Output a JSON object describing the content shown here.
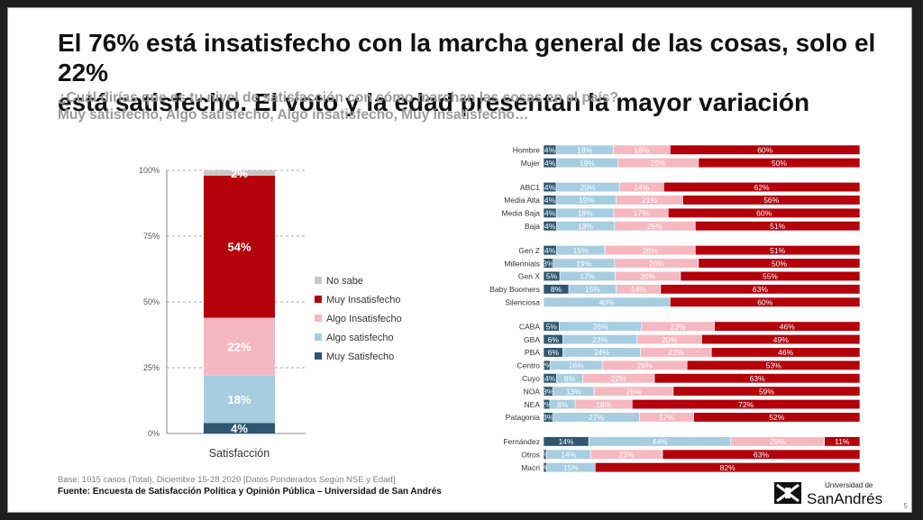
{
  "slide": {
    "title_lines": [
      "El 76% está insatisfecho con la marcha general de las cosas, solo el 22%",
      "está satisfecho. El voto y la edad presentan la mayor variación"
    ],
    "subtitle_lines": [
      "¿Cuál dirías que es tu nivel de satisfacción con cómo marchan las cosas en el país?",
      "Muy satisfecho, Algo satisfecho, Algo insatisfecho, Muy insatisfecho…"
    ],
    "footer_base": "Base: 1015 casos (Total), Diciembre 15-28 2020 [Datos Ponderados Según NSE y Edad]",
    "footer_source": "Fuente: Encuesta de Satisfacción Política y Opinión Pública – Universidad de San Andrés",
    "logo_top": "Universidad de",
    "logo_bottom": "SanAndrés",
    "page_number": "5"
  },
  "chart_data": [
    {
      "type": "bar",
      "stacked": true,
      "orientation": "vertical",
      "categories": [
        "Satisfacción"
      ],
      "y_ticks": [
        "0%",
        "25%",
        "50%",
        "75%",
        "100%"
      ],
      "ylim": [
        0,
        100
      ],
      "legend_position": "right",
      "series": [
        {
          "name": "Muy Satisfecho",
          "values": [
            4
          ],
          "labels": [
            "4%"
          ]
        },
        {
          "name": "Algo satisfecho",
          "values": [
            18
          ],
          "labels": [
            "18%"
          ]
        },
        {
          "name": "Algo Insatisfecho",
          "values": [
            22
          ],
          "labels": [
            "22%"
          ]
        },
        {
          "name": "Muy Insatisfecho",
          "values": [
            54
          ],
          "labels": [
            "54%"
          ]
        },
        {
          "name": "No sabe",
          "values": [
            2
          ],
          "labels": [
            "2%"
          ]
        }
      ],
      "colors": {
        "Muy Satisfecho": "#2e5670",
        "Algo satisfecho": "#a7cde0",
        "Algo Insatisfecho": "#f6b8c0",
        "Muy Insatisfecho": "#b3000b",
        "No sabe": "#c8c8c8"
      }
    },
    {
      "type": "bar",
      "stacked": true,
      "orientation": "horizontal",
      "series_order": [
        "Muy Satisfecho",
        "Algo satisfecho",
        "Algo Insatisfecho",
        "Muy Insatisfecho"
      ],
      "colors": [
        "#2e5670",
        "#a7cde0",
        "#f6b8c0",
        "#b3000b"
      ],
      "groups": [
        {
          "rows": [
            {
              "label": "Hombre",
              "values": [
                4,
                18,
                18,
                60
              ]
            },
            {
              "label": "Mujer",
              "values": [
                4,
                19,
                25,
                50
              ]
            }
          ]
        },
        {
          "rows": [
            {
              "label": "ABC1",
              "values": [
                4,
                20,
                14,
                62
              ]
            },
            {
              "label": "Media Alta",
              "values": [
                4,
                19,
                21,
                56
              ]
            },
            {
              "label": "Media Baja",
              "values": [
                4,
                18,
                17,
                60
              ]
            },
            {
              "label": "Baja",
              "values": [
                4,
                18,
                25,
                51
              ]
            }
          ]
        },
        {
          "rows": [
            {
              "label": "Gen Z",
              "values": [
                4,
                15,
                28,
                51
              ]
            },
            {
              "label": "Millennials",
              "values": [
                3,
                19,
                26,
                50
              ]
            },
            {
              "label": "Gen X",
              "values": [
                5,
                17,
                20,
                55
              ]
            },
            {
              "label": "Baby Boomers",
              "values": [
                8,
                15,
                14,
                63
              ]
            },
            {
              "label": "Silenciosa",
              "values": [
                0,
                40,
                0,
                60
              ]
            }
          ]
        },
        {
          "rows": [
            {
              "label": "CABA",
              "values": [
                5,
                26,
                23,
                46
              ]
            },
            {
              "label": "GBA",
              "values": [
                6,
                23,
                20,
                49
              ]
            },
            {
              "label": "PBA",
              "values": [
                6,
                24,
                22,
                46
              ]
            },
            {
              "label": "Centro",
              "values": [
                2,
                16,
                26,
                53
              ]
            },
            {
              "label": "Cuyo",
              "values": [
                4,
                8,
                22,
                63
              ]
            },
            {
              "label": "NOA",
              "values": [
                3,
                13,
                25,
                59
              ]
            },
            {
              "label": "NEA",
              "values": [
                2,
                8,
                18,
                72
              ]
            },
            {
              "label": "Patagonia",
              "values": [
                3,
                27,
                17,
                52
              ]
            }
          ]
        },
        {
          "rows": [
            {
              "label": "Fernández",
              "values": [
                14,
                44,
                29,
                11
              ]
            },
            {
              "label": "Otros",
              "values": [
                1,
                14,
                23,
                63
              ]
            },
            {
              "label": "Macri",
              "values": [
                1,
                15,
                0,
                82
              ]
            }
          ]
        }
      ]
    }
  ]
}
